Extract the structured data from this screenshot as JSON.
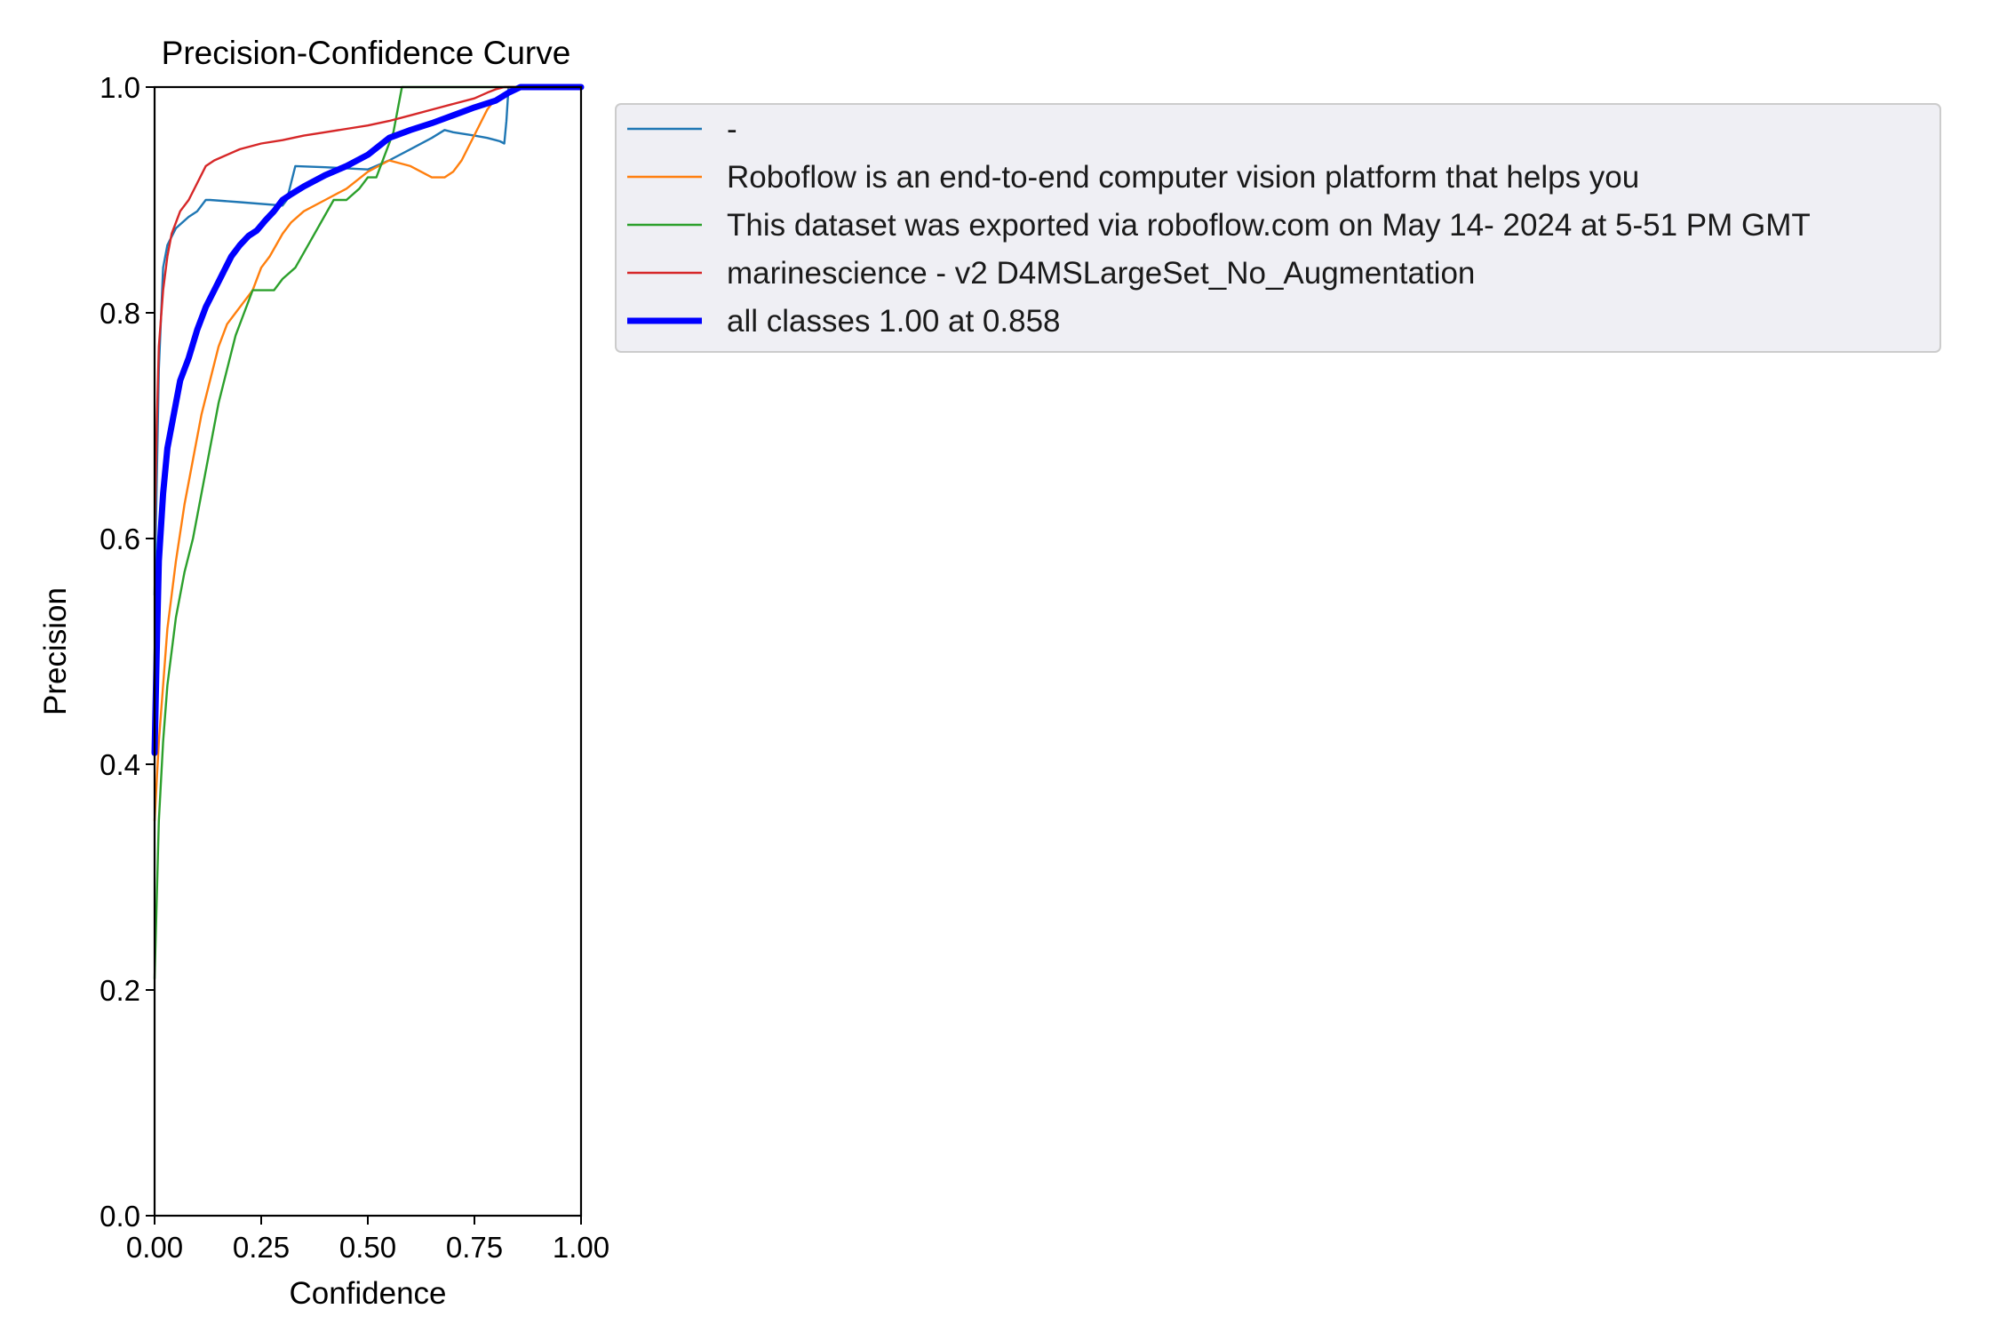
{
  "chart_data": {
    "type": "line",
    "title": "Precision-Confidence Curve",
    "xlabel": "Confidence",
    "ylabel": "Precision",
    "xlim": [
      0,
      1
    ],
    "ylim": [
      0,
      1
    ],
    "xticks": [
      "0.00",
      "0.25",
      "0.50",
      "0.75",
      "1.00"
    ],
    "yticks": [
      "0.0",
      "0.2",
      "0.4",
      "0.6",
      "0.8",
      "1.0"
    ],
    "grid": false,
    "legend_placement": "outside upper-right",
    "series": [
      {
        "name": "-",
        "color": "#1f77b4",
        "x": [
          0.0,
          0.01,
          0.02,
          0.03,
          0.05,
          0.08,
          0.1,
          0.12,
          0.13,
          0.2,
          0.3,
          0.31,
          0.32,
          0.33,
          0.4,
          0.45,
          0.5,
          0.55,
          0.6,
          0.65,
          0.68,
          0.7,
          0.75,
          0.78,
          0.8,
          0.81,
          0.82,
          0.825,
          0.83,
          0.85,
          0.9,
          1.0
        ],
        "y": [
          0.55,
          0.75,
          0.84,
          0.86,
          0.875,
          0.885,
          0.89,
          0.9,
          0.9,
          0.898,
          0.895,
          0.9,
          0.915,
          0.93,
          0.929,
          0.928,
          0.927,
          0.935,
          0.945,
          0.955,
          0.962,
          0.96,
          0.957,
          0.955,
          0.953,
          0.952,
          0.95,
          0.97,
          1.0,
          1.0,
          1.0,
          1.0
        ]
      },
      {
        "name": "Roboflow is an end-to-end computer vision platform that helps you",
        "color": "#ff7f0e",
        "x": [
          0.0,
          0.01,
          0.02,
          0.03,
          0.05,
          0.07,
          0.09,
          0.11,
          0.13,
          0.15,
          0.17,
          0.19,
          0.21,
          0.23,
          0.25,
          0.27,
          0.3,
          0.32,
          0.35,
          0.4,
          0.45,
          0.5,
          0.55,
          0.6,
          0.65,
          0.68,
          0.7,
          0.72,
          0.74,
          0.76,
          0.78,
          0.8,
          0.85,
          0.9,
          1.0
        ],
        "y": [
          0.35,
          0.42,
          0.47,
          0.52,
          0.58,
          0.63,
          0.67,
          0.71,
          0.74,
          0.77,
          0.79,
          0.8,
          0.81,
          0.82,
          0.84,
          0.85,
          0.87,
          0.88,
          0.89,
          0.9,
          0.91,
          0.925,
          0.935,
          0.93,
          0.92,
          0.92,
          0.925,
          0.935,
          0.95,
          0.965,
          0.98,
          0.99,
          1.0,
          1.0,
          1.0
        ]
      },
      {
        "name": "This dataset was exported via roboflow.com on May 14- 2024 at 5-51 PM GMT",
        "color": "#2ca02c",
        "x": [
          0.0,
          0.01,
          0.02,
          0.03,
          0.05,
          0.07,
          0.09,
          0.11,
          0.13,
          0.15,
          0.17,
          0.19,
          0.21,
          0.23,
          0.25,
          0.28,
          0.3,
          0.33,
          0.36,
          0.39,
          0.42,
          0.45,
          0.48,
          0.5,
          0.52,
          0.54,
          0.56,
          0.57,
          0.58,
          0.6,
          0.7,
          0.8,
          0.9,
          1.0
        ],
        "y": [
          0.21,
          0.35,
          0.42,
          0.47,
          0.53,
          0.57,
          0.6,
          0.64,
          0.68,
          0.72,
          0.75,
          0.78,
          0.8,
          0.82,
          0.82,
          0.82,
          0.83,
          0.84,
          0.86,
          0.88,
          0.9,
          0.9,
          0.91,
          0.92,
          0.92,
          0.94,
          0.96,
          0.98,
          1.0,
          1.0,
          1.0,
          1.0,
          1.0,
          1.0
        ]
      },
      {
        "name": "marinescience - v2 D4MSLargeSet_No_Augmentation",
        "color": "#d62728",
        "x": [
          0.0,
          0.005,
          0.01,
          0.02,
          0.03,
          0.04,
          0.05,
          0.06,
          0.08,
          0.1,
          0.12,
          0.14,
          0.17,
          0.2,
          0.25,
          0.3,
          0.35,
          0.4,
          0.45,
          0.5,
          0.55,
          0.6,
          0.65,
          0.7,
          0.75,
          0.78,
          0.8,
          0.82,
          0.85,
          0.9,
          1.0
        ],
        "y": [
          0.6,
          0.7,
          0.77,
          0.82,
          0.85,
          0.87,
          0.88,
          0.89,
          0.9,
          0.915,
          0.93,
          0.935,
          0.94,
          0.945,
          0.95,
          0.953,
          0.957,
          0.96,
          0.963,
          0.966,
          0.97,
          0.975,
          0.98,
          0.985,
          0.99,
          0.995,
          0.998,
          1.0,
          1.0,
          1.0,
          1.0
        ]
      },
      {
        "name": "all classes 1.00 at 0.858",
        "color": "#0000ff",
        "thick": true,
        "x": [
          0.0,
          0.005,
          0.01,
          0.02,
          0.03,
          0.04,
          0.05,
          0.06,
          0.08,
          0.1,
          0.12,
          0.14,
          0.16,
          0.18,
          0.2,
          0.22,
          0.24,
          0.26,
          0.28,
          0.3,
          0.32,
          0.35,
          0.4,
          0.45,
          0.5,
          0.55,
          0.6,
          0.65,
          0.7,
          0.75,
          0.8,
          0.83,
          0.858,
          0.9,
          0.95,
          1.0
        ],
        "y": [
          0.41,
          0.5,
          0.58,
          0.64,
          0.68,
          0.7,
          0.72,
          0.74,
          0.76,
          0.785,
          0.805,
          0.82,
          0.835,
          0.85,
          0.86,
          0.868,
          0.873,
          0.882,
          0.89,
          0.9,
          0.905,
          0.912,
          0.922,
          0.93,
          0.94,
          0.955,
          0.962,
          0.968,
          0.975,
          0.982,
          0.988,
          0.995,
          1.0,
          1.0,
          1.0,
          1.0
        ]
      }
    ]
  }
}
